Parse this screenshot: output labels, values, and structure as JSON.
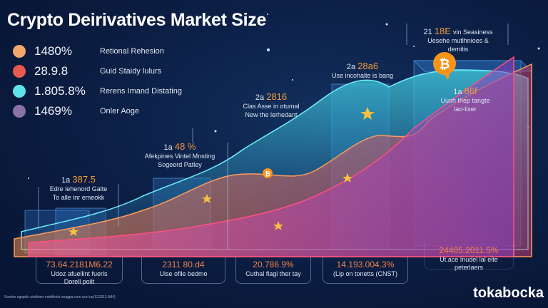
{
  "title": "Crypto Deirivatives Market Size",
  "legend": [
    {
      "value": "1480%",
      "label": "Retional Rehesion",
      "color": "#f4a76a"
    },
    {
      "value": "28.9.8",
      "label": "Guid Staidy lulurs",
      "color": "#e85a50"
    },
    {
      "value": "1.805.8%",
      "label": "Rerens Imand Distating",
      "color": "#5fe3ea"
    },
    {
      "value": "1469%",
      "label": "Onler Aoge",
      "color": "#8a73a8"
    }
  ],
  "annotations": [
    {
      "prefix": "1a",
      "value": "387.5",
      "lines": [
        "Edre lehenord Galte",
        "To alle inr emeokk"
      ]
    },
    {
      "prefix": "1a",
      "value": "48 %",
      "lines": [
        "Afekpines Vintel Mnsting",
        "Sogeerd Patley"
      ]
    },
    {
      "prefix": "2a",
      "value": "2816",
      "lines": [
        "Clas Asse in otumal",
        "New the lerhedant"
      ]
    },
    {
      "prefix": "2a",
      "value": "28a6",
      "lines": [
        "Use incohalte is bang"
      ]
    },
    {
      "prefix": "21",
      "value": "18E",
      "lines": [
        "vin Seasiness",
        "Uesehe mutlhnioes &",
        "demitis"
      ]
    },
    {
      "prefix": "1a",
      "value": "86f",
      "lines": [
        "Uuoh thep tangte",
        "lao-lixer"
      ]
    }
  ],
  "boxes": [
    {
      "value": "73.64.2181M6.22",
      "lines": [
        "Udoz afuellint fuerls",
        "Dorell poilt"
      ]
    },
    {
      "value": "2311 80.d4",
      "lines": [
        "Uise ofile bedmo"
      ]
    },
    {
      "value": "20.786.9%",
      "lines": [
        "Cuthal flagi ther tay"
      ]
    },
    {
      "value": "14.193.004.3%",
      "lines": [
        "(Lip on tonetts (CNST)"
      ]
    },
    {
      "value": "24405.2011.5%",
      "lines": [
        "Ut.ace Inudel lal eite",
        "peterlaers"
      ]
    }
  ],
  "footer": "Sowlen ugspdic uinthlaer instdthelo unagpa.com ucel ue(S12312.A84)",
  "logo": "tokabocka",
  "colors": {
    "accent": "#f39a3a",
    "teal": "#4fd6e6",
    "pink": "#e8407a",
    "bitcoin": "#f7931a"
  }
}
